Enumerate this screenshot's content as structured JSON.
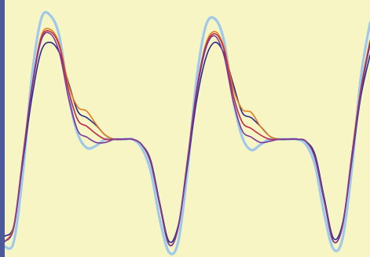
{
  "chart_data": {
    "type": "line",
    "title": "",
    "xlabel": "",
    "ylabel": "",
    "grid": false,
    "legend": "none",
    "xlim": [
      0,
      1
    ],
    "ylim": [
      -1.05,
      1.25
    ],
    "x": [
      0.0,
      0.025,
      0.05,
      0.075,
      0.1,
      0.125,
      0.15,
      0.175,
      0.2,
      0.225,
      0.25,
      0.275,
      0.3,
      0.325,
      0.35,
      0.375,
      0.4,
      0.425,
      0.45,
      0.475,
      0.5,
      0.525,
      0.55,
      0.575,
      0.6,
      0.625,
      0.65,
      0.675,
      0.7,
      0.725,
      0.75,
      0.775,
      0.8,
      0.825,
      0.85,
      0.875,
      0.9,
      0.925,
      0.95,
      0.975,
      1.0
    ],
    "series": [
      {
        "color": "#2a2a8a",
        "values": [
          -0.9,
          -0.8,
          -0.2,
          0.4,
          0.82,
          0.9,
          0.8,
          0.52,
          0.26,
          0.2,
          0.13,
          0.04,
          0.0,
          0.0,
          0.0,
          -0.05,
          -0.2,
          -0.6,
          -0.95,
          -0.8,
          -0.25,
          0.35,
          0.75,
          0.9,
          0.8,
          0.52,
          0.25,
          0.2,
          0.12,
          0.03,
          0.0,
          0.0,
          0.0,
          -0.02,
          -0.15,
          -0.55,
          -0.92,
          -0.78,
          -0.2,
          0.4,
          0.78
        ]
      },
      {
        "color": "#e08020",
        "values": [
          -0.95,
          -0.8,
          -0.15,
          0.5,
          0.96,
          1.02,
          0.88,
          0.5,
          0.3,
          0.26,
          0.14,
          0.04,
          0.0,
          0.0,
          0.0,
          -0.05,
          -0.22,
          -0.62,
          -0.98,
          -0.82,
          -0.2,
          0.45,
          0.88,
          1.0,
          0.86,
          0.48,
          0.28,
          0.25,
          0.12,
          0.03,
          0.0,
          0.0,
          0.0,
          -0.02,
          -0.18,
          -0.58,
          -0.95,
          -0.8,
          -0.15,
          0.48,
          0.92
        ]
      },
      {
        "color": "#c02a4a",
        "values": [
          -0.95,
          -0.82,
          -0.15,
          0.5,
          0.94,
          1.0,
          0.86,
          0.45,
          0.18,
          0.12,
          0.05,
          0.0,
          0.0,
          0.0,
          0.0,
          -0.05,
          -0.22,
          -0.62,
          -0.98,
          -0.82,
          -0.2,
          0.45,
          0.86,
          0.98,
          0.84,
          0.42,
          0.16,
          0.1,
          0.04,
          0.0,
          0.0,
          0.0,
          0.0,
          -0.02,
          -0.18,
          -0.58,
          -0.95,
          -0.8,
          -0.15,
          0.46,
          0.9
        ]
      },
      {
        "color": "#7a3a9a",
        "values": [
          -0.95,
          -0.82,
          -0.18,
          0.48,
          0.92,
          0.98,
          0.8,
          0.38,
          0.08,
          0.02,
          -0.03,
          -0.03,
          0.0,
          0.0,
          0.0,
          -0.05,
          -0.22,
          -0.62,
          -0.98,
          -0.82,
          -0.22,
          0.42,
          0.84,
          0.96,
          0.78,
          0.36,
          0.08,
          0.02,
          -0.03,
          -0.02,
          0.0,
          0.0,
          0.0,
          -0.02,
          -0.18,
          -0.58,
          -0.95,
          -0.8,
          -0.18,
          0.44,
          0.88
        ]
      },
      {
        "color": "#9ec8ec",
        "values": [
          -1.0,
          -0.95,
          -0.3,
          0.6,
          1.12,
          1.15,
          0.95,
          0.4,
          0.05,
          -0.08,
          -0.06,
          0.0,
          0.0,
          0.0,
          0.0,
          -0.08,
          -0.3,
          -0.75,
          -1.05,
          -0.95,
          -0.3,
          0.55,
          1.05,
          1.12,
          0.92,
          0.38,
          0.02,
          -0.1,
          -0.05,
          0.0,
          0.0,
          0.0,
          0.0,
          -0.05,
          -0.25,
          -0.7,
          -1.02,
          -0.92,
          -0.28,
          0.58,
          1.08
        ]
      }
    ]
  }
}
